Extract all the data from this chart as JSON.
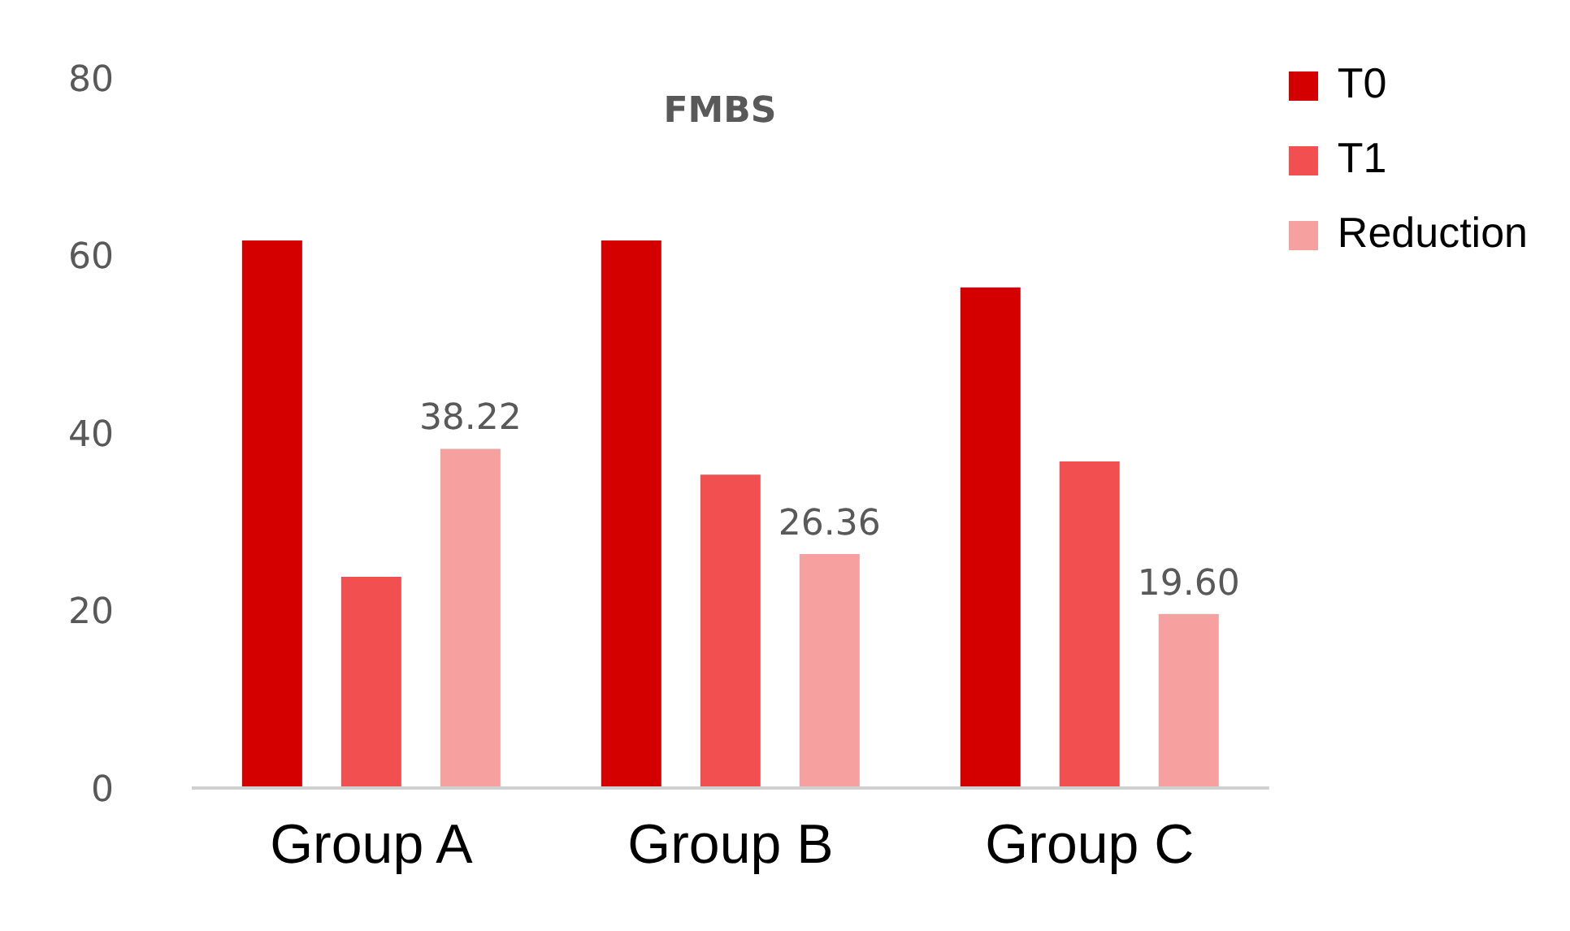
{
  "chart_data": {
    "type": "bar",
    "title": "FMBS",
    "categories": [
      "Group A",
      "Group B",
      "Group C"
    ],
    "series": [
      {
        "name": "T0",
        "color": "#d40000",
        "values": [
          61.7,
          61.7,
          56.4
        ]
      },
      {
        "name": "T1",
        "color": "#f25050",
        "values": [
          23.8,
          35.3,
          36.8
        ]
      },
      {
        "name": "Reduction",
        "color": "#f7a0a0",
        "values": [
          38.22,
          26.36,
          19.6
        ],
        "value_labels": [
          "38.22",
          "26.36",
          "19.60"
        ]
      }
    ],
    "ylim": [
      0,
      80
    ],
    "yticks": [
      0,
      20,
      40,
      60,
      80
    ],
    "grid": false,
    "legend": "top right"
  }
}
